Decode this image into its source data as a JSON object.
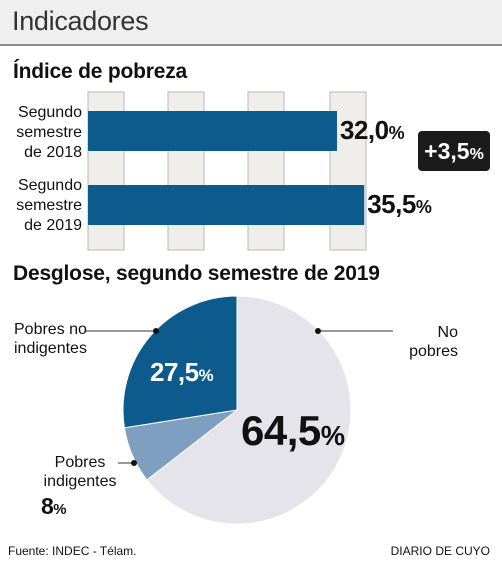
{
  "header": {
    "title": "Indicadores"
  },
  "chart_data": [
    {
      "type": "bar",
      "orientation": "horizontal",
      "title": "Índice de pobreza",
      "categories": [
        "Segundo semestre de 2018",
        "Segundo semestre de 2019"
      ],
      "category_lines": [
        [
          "Segundo",
          "semestre",
          "de 2018"
        ],
        [
          "Segundo",
          "semestre",
          "de 2019"
        ]
      ],
      "values": [
        32.0,
        35.5
      ],
      "value_labels": [
        "32,0",
        "35,5"
      ],
      "unit": "%",
      "xlim": [
        0,
        36.5
      ],
      "grid": true,
      "annotation": {
        "text": "+3,5",
        "unit": "%"
      },
      "color": "#0d5b8c"
    },
    {
      "type": "pie",
      "title": "Desglose, segundo semestre de 2019",
      "slices": [
        {
          "label_lines": [
            "No",
            "pobres"
          ],
          "value": 64.5,
          "value_label": "64,5",
          "color": "#e4e4ea"
        },
        {
          "label_lines": [
            "Pobres",
            "indigentes"
          ],
          "value": 8,
          "value_label": "8",
          "color": "#7f9fc0"
        },
        {
          "label_lines": [
            "Pobres no",
            "indigentes"
          ],
          "value": 27.5,
          "value_label": "27,5",
          "color": "#0d5b8c"
        }
      ],
      "unit": "%"
    }
  ],
  "footer": {
    "source": "Fuente: INDEC - Télam.",
    "credit": "DIARIO DE CUYO"
  }
}
